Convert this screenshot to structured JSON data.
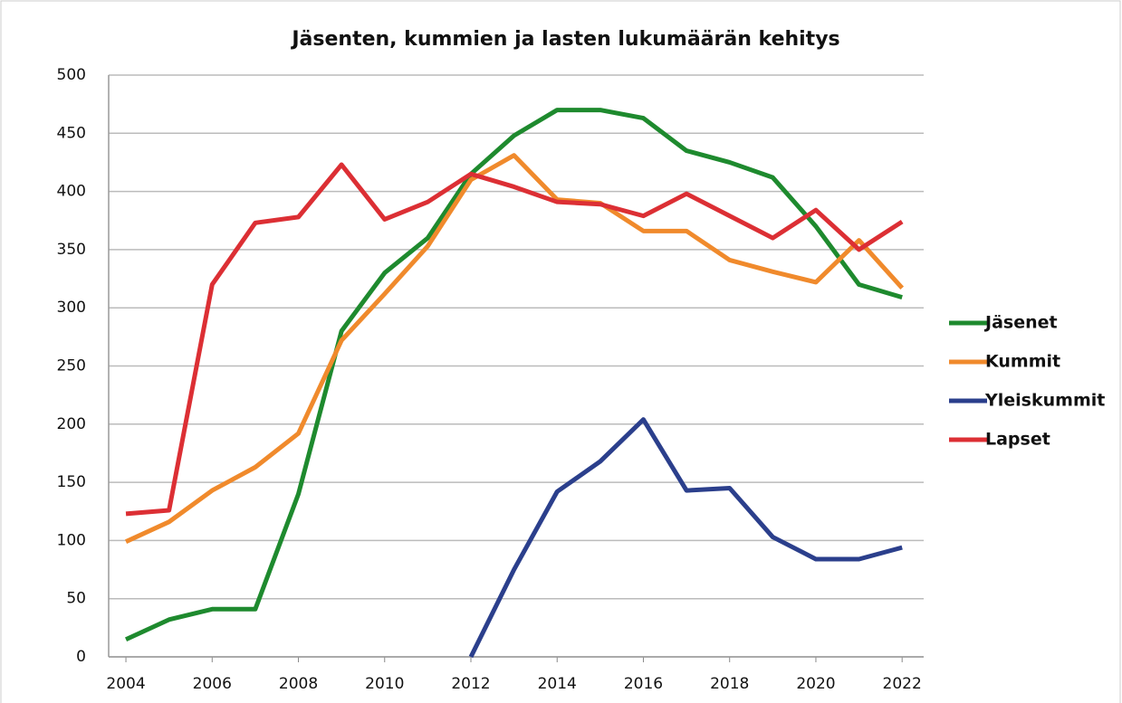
{
  "chart_data": {
    "type": "line",
    "title": "Jäsenten, kummien ja lasten lukumäärän kehitys",
    "x": [
      2004,
      2005,
      2006,
      2007,
      2008,
      2009,
      2010,
      2011,
      2012,
      2013,
      2014,
      2015,
      2016,
      2017,
      2018,
      2019,
      2020,
      2021,
      2022
    ],
    "series": [
      {
        "name": "Jäsenet",
        "color": "#1e8a2e",
        "values": [
          15,
          32,
          41,
          41,
          140,
          280,
          330,
          360,
          415,
          448,
          470,
          470,
          463,
          435,
          425,
          412,
          370,
          320,
          309
        ]
      },
      {
        "name": "Kummit",
        "color": "#f08a2c",
        "values": [
          99,
          116,
          143,
          163,
          192,
          272,
          312,
          353,
          410,
          431,
          393,
          390,
          366,
          366,
          341,
          331,
          322,
          358,
          317
        ]
      },
      {
        "name": "Yleiskummit",
        "color": "#2b3f8c",
        "values": [
          null,
          null,
          null,
          null,
          null,
          null,
          null,
          null,
          0,
          75,
          142,
          168,
          204,
          143,
          145,
          103,
          84,
          84,
          94
        ]
      },
      {
        "name": "Lapset",
        "color": "#dc2f34",
        "values": [
          123,
          126,
          320,
          373,
          378,
          423,
          376,
          391,
          415,
          404,
          391,
          389,
          379,
          398,
          379,
          360,
          384,
          350,
          374
        ]
      }
    ],
    "xlim": [
      2003.6,
      2022.5
    ],
    "xticks": [
      2004,
      2006,
      2008,
      2010,
      2012,
      2014,
      2016,
      2018,
      2020,
      2022
    ],
    "ylim": [
      0,
      500
    ],
    "yticks": [
      0,
      50,
      100,
      150,
      200,
      250,
      300,
      350,
      400,
      450,
      500
    ],
    "grid": true,
    "legend": "right"
  }
}
